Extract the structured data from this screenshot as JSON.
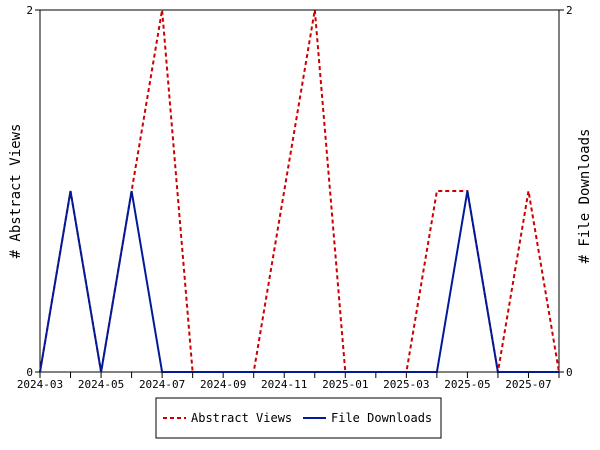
{
  "chart_data": {
    "type": "line",
    "x_tick_labels": [
      "2024-03",
      "2024-05",
      "2024-07",
      "2024-09",
      "2024-11",
      "2025-01",
      "2025-03",
      "2025-05",
      "2025-07"
    ],
    "x": [
      "2024-03",
      "2024-04",
      "2024-05",
      "2024-06",
      "2024-07",
      "2024-08",
      "2024-09",
      "2024-10",
      "2024-11",
      "2024-12",
      "2025-01",
      "2025-02",
      "2025-03",
      "2025-04",
      "2025-05",
      "2025-06",
      "2025-07",
      "2025-08"
    ],
    "series": [
      {
        "name": "Abstract Views",
        "axis": "left",
        "color": "#cc0000",
        "style": "dashed",
        "values": [
          0,
          1,
          0,
          1,
          2,
          0,
          0,
          0,
          1,
          2,
          0,
          0,
          0,
          1,
          1,
          0,
          1,
          0
        ]
      },
      {
        "name": "File Downloads",
        "axis": "right",
        "color": "#001a99",
        "style": "solid",
        "values": [
          0,
          1,
          0,
          1,
          0,
          0,
          0,
          0,
          0,
          0,
          0,
          0,
          0,
          0,
          1,
          0,
          0,
          0
        ]
      }
    ],
    "ylabel_left": "# Abstract Views",
    "ylabel_right": "# File Downloads",
    "ylim_left": [
      0,
      2
    ],
    "ylim_right": [
      0,
      2
    ],
    "y_tick_labels_left": [
      "0",
      "2"
    ],
    "y_tick_labels_right": [
      "0",
      "2"
    ],
    "grid": false,
    "legend_placement": "bottom-center"
  }
}
